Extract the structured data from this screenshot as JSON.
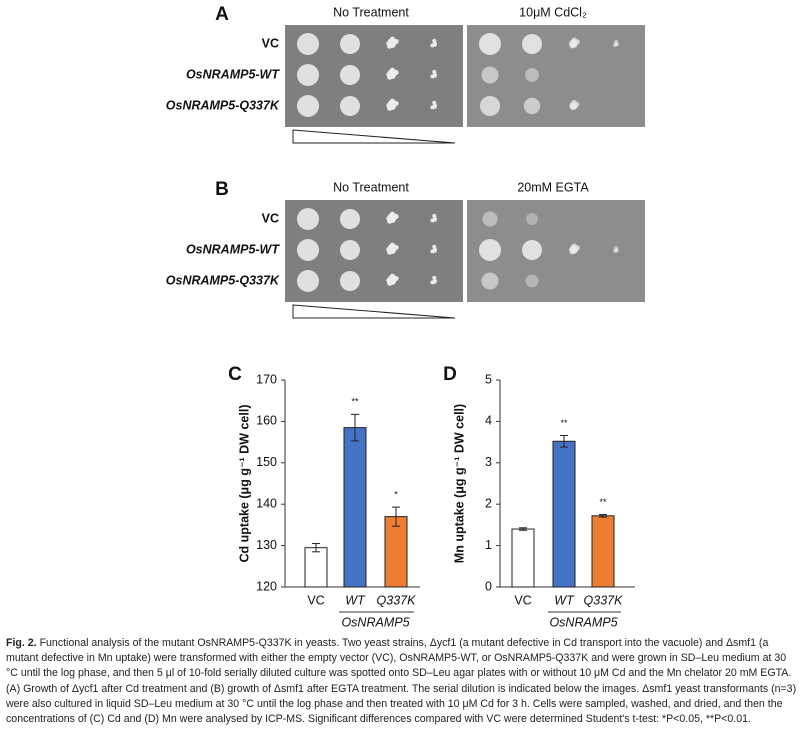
{
  "panels": [
    {
      "label": "A",
      "conditions": [
        "No Treatment",
        "10μM CdCl₂"
      ],
      "rows": [
        "VC",
        "OsNRAMP5-WT",
        "OsNRAMP5-Q337K"
      ]
    },
    {
      "label": "B",
      "conditions": [
        "No Treatment",
        "20mM EGTA"
      ],
      "rows": [
        "VC",
        "OsNRAMP5-WT",
        "OsNRAMP5-Q337K"
      ]
    }
  ],
  "chart_data": [
    {
      "type": "bar",
      "panel": "C",
      "ylabel": "Cd uptake (μg g⁻¹ DW cell)",
      "categories": [
        "VC",
        "WT",
        "Q337K"
      ],
      "group_label": "OsNRAMP5",
      "values": [
        129.5,
        158.5,
        137
      ],
      "errors": [
        1,
        3.2,
        2.3
      ],
      "significance": [
        null,
        "**",
        "*"
      ],
      "colors": [
        "#ffffff",
        "#4472c4",
        "#ed7d31"
      ],
      "ylim": [
        120,
        170
      ],
      "yticks": [
        120,
        130,
        140,
        150,
        160,
        170
      ]
    },
    {
      "type": "bar",
      "panel": "D",
      "ylabel": "Mn uptake (μg g⁻¹ DW cell)",
      "categories": [
        "VC",
        "WT",
        "Q337K"
      ],
      "group_label": "OsNRAMP5",
      "values": [
        1.4,
        3.52,
        1.72
      ],
      "errors": [
        0.03,
        0.14,
        0.03
      ],
      "significance": [
        null,
        "**",
        "**"
      ],
      "colors": [
        "#ffffff",
        "#4472c4",
        "#ed7d31"
      ],
      "ylim": [
        0,
        5
      ],
      "yticks": [
        0,
        1,
        2,
        3,
        4,
        5
      ]
    }
  ],
  "caption": {
    "label": "Fig. 2.",
    "text": "Functional analysis of the mutant OsNRAMP5-Q337K in yeasts. Two yeast strains, Δycf1 (a mutant defective in Cd transport into the vacuole) and Δsmf1 (a mutant defective in Mn uptake) were transformed with either the empty vector (VC), OsNRAMP5-WT, or OsNRAMP5-Q337K and were grown in SD–Leu medium at 30 °C until the log phase, and then 5 μl of 10-fold serially diluted culture was spotted onto SD–Leu agar plates with or without 10 μM Cd and the Mn chelator 20 mM EGTA. (A) Growth of Δycf1 after Cd treatment and (B) growth of Δsmf1 after EGTA treatment. The serial dilution is indicated below the images. Δsmf1 yeast transformants (n=3) were also cultured in liquid SD–Leu medium at 30 °C until the log phase and then treated with 10 μM Cd for 3 h. Cells were sampled, washed, and dried, and then the concentrations of (C) Cd and (D) Mn were analysed by ICP-MS. Significant differences compared with VC were determined Student's t-test: *P<0.05, **P<0.01."
  }
}
